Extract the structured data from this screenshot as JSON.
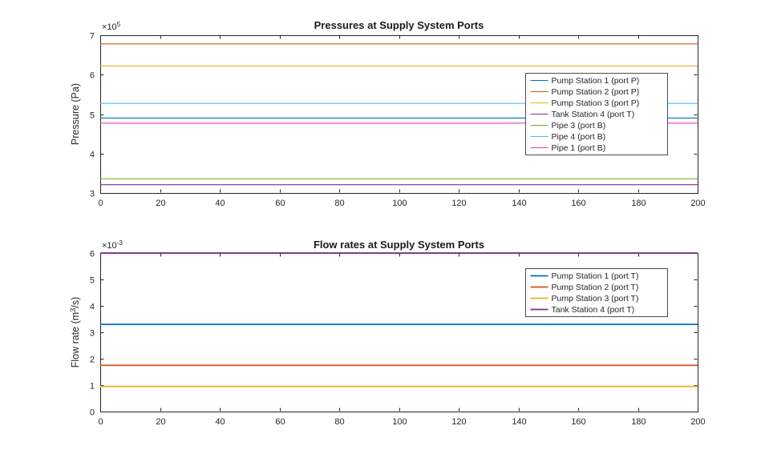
{
  "figure": {
    "background": "#ffffff",
    "axis_color": "#262626",
    "text_color": "#262626",
    "title_color": "#1a1a1a",
    "legend_border_color": "#4d4d4d"
  },
  "chart_data": [
    {
      "type": "line",
      "name": "pressures",
      "title": "Pressures at Supply System Ports",
      "xlabel": "",
      "ylabel": "Pressure (Pa)",
      "y_scale_label": "×10^5",
      "units_multiplier": 100000,
      "xlim": [
        0,
        200
      ],
      "ylim": [
        3,
        7
      ],
      "xticks": [
        0,
        20,
        40,
        60,
        80,
        100,
        120,
        140,
        160,
        180,
        200
      ],
      "yticks": [
        3,
        4,
        5,
        6,
        7
      ],
      "grid": false,
      "legend_location": "east-inside",
      "x": [
        0,
        200
      ],
      "series": [
        {
          "name": "Pump Station 1 (port P)",
          "color": "#0072BD",
          "values": [
            4.9,
            4.9
          ]
        },
        {
          "name": "Pump Station 2 (port P)",
          "color": "#D95319",
          "values": [
            6.78,
            6.78
          ]
        },
        {
          "name": "Pump Station 3 (port P)",
          "color": "#EDB120",
          "values": [
            6.22,
            6.22
          ]
        },
        {
          "name": "Tank Station 4 (port T)",
          "color": "#7E2F8E",
          "values": [
            3.21,
            3.21
          ]
        },
        {
          "name": "Pipe 3 (port B)",
          "color": "#77AC30",
          "values": [
            3.36,
            3.36
          ]
        },
        {
          "name": "Pipe 4 (port B)",
          "color": "#4DBEEE",
          "values": [
            5.27,
            5.27
          ]
        },
        {
          "name": "Pipe 1 (port B)",
          "color": "#EE3FB0",
          "values": [
            4.77,
            4.77
          ]
        }
      ]
    },
    {
      "type": "line",
      "name": "flow-rates",
      "title": "Flow rates at Supply System Ports",
      "xlabel": "",
      "ylabel": "Flow rate  (m^3/s)",
      "y_scale_label": "×10^-3",
      "units_multiplier": 0.001,
      "xlim": [
        0,
        200
      ],
      "ylim": [
        0,
        6
      ],
      "xticks": [
        0,
        20,
        40,
        60,
        80,
        100,
        120,
        140,
        160,
        180,
        200
      ],
      "yticks": [
        0,
        1,
        2,
        3,
        4,
        5,
        6
      ],
      "grid": false,
      "legend_location": "northeast-inside",
      "x": [
        0,
        200
      ],
      "series": [
        {
          "name": "Pump Station 1 (port T)",
          "color": "#0072BD",
          "values": [
            3.3,
            3.3
          ]
        },
        {
          "name": "Pump Station 2 (port T)",
          "color": "#D95319",
          "values": [
            1.75,
            1.75
          ]
        },
        {
          "name": "Pump Station 3 (port T)",
          "color": "#EDB120",
          "values": [
            0.95,
            0.95
          ]
        },
        {
          "name": "Tank Station 4 (port T)",
          "color": "#7E2F8E",
          "values": [
            6.0,
            6.0
          ]
        }
      ]
    }
  ]
}
